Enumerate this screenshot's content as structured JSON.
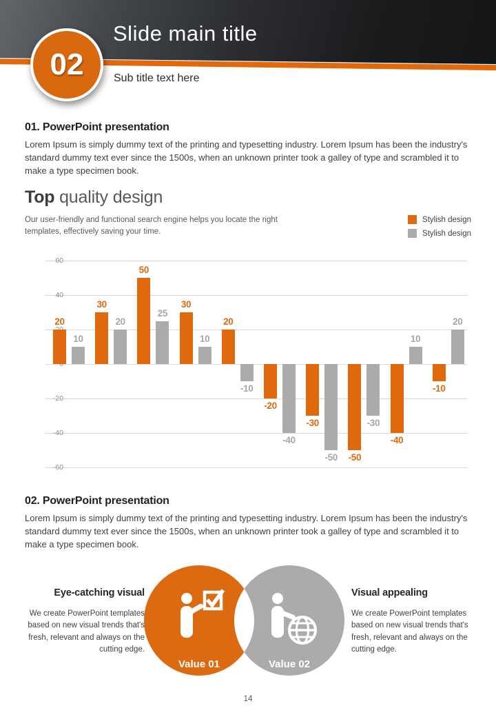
{
  "colors": {
    "accent": "#E0690E",
    "circle_orange": "#D8690F",
    "gray": "#ABABAB",
    "grid": "#D9D9D9",
    "axis_text": "#8C8C8C",
    "orange_label": "#E0690E",
    "gray_label": "#A6A6A6"
  },
  "header": {
    "number": "02",
    "title": "Slide main title",
    "subtitle": "Sub title text here"
  },
  "section1": {
    "heading": "01. PowerPoint presentation",
    "body": "Lorem Ipsum is simply dummy text of the printing and typesetting industry. Lorem Ipsum has been the industry's standard dummy text ever since the 1500s, when an unknown printer took a galley of type and scrambled it to make a type specimen book."
  },
  "feature": {
    "title_bold": "Top",
    "title_rest": " quality design",
    "description": "Our user-friendly and functional search engine helps you locate the right templates, effectively saving your time.",
    "legend": [
      {
        "label": "Stylish design",
        "color": "#E0690E"
      },
      {
        "label": "Stylish design",
        "color": "#ABABAB"
      }
    ]
  },
  "chart_data": {
    "type": "bar",
    "categories": [
      "",
      "",
      "",
      "",
      "",
      "",
      "",
      "",
      "",
      ""
    ],
    "series": [
      {
        "name": "Stylish design",
        "color": "#E0690E",
        "label_color": "#E0690E",
        "values": [
          20,
          30,
          50,
          30,
          20,
          -20,
          -30,
          -50,
          -40,
          -10
        ]
      },
      {
        "name": "Stylish design",
        "color": "#ABABAB",
        "label_color": "#A6A6A6",
        "values": [
          10,
          20,
          25,
          10,
          -10,
          -40,
          -50,
          -30,
          10,
          20
        ]
      }
    ],
    "ylim": [
      -60,
      60
    ],
    "yticks": [
      60,
      40,
      20,
      0,
      -20,
      -40,
      -60
    ],
    "grid": true,
    "legend_position": "top-right",
    "data_labels": true
  },
  "section2": {
    "heading": "02. PowerPoint presentation",
    "body": "Lorem Ipsum is simply dummy text of the printing and typesetting industry. Lorem Ipsum has been the industry's standard dummy text ever since the 1500s, when an unknown printer took a galley of type and scrambled it to make a type specimen book."
  },
  "venn": {
    "orange_fill": "#DC6A11",
    "gray_fill": "#ABABAB",
    "value1": "Value 01",
    "value2": "Value 02",
    "left": {
      "heading": "Eye-catching visual",
      "body": "We create PowerPoint templates based on new visual trends that's fresh, relevant and always on the cutting edge."
    },
    "right": {
      "heading": "Visual appealing",
      "body": "We create PowerPoint templates based on new visual trends that's fresh, relevant and always on the cutting edge."
    }
  },
  "footer": {
    "page": "14"
  }
}
